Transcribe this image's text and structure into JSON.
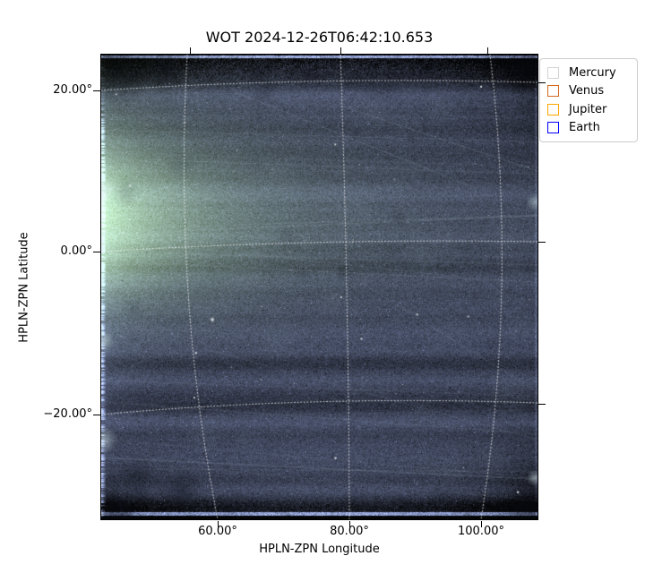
{
  "figure": {
    "title": "WOT 2024-12-26T06:42:10.653",
    "background_color": "#ffffff"
  },
  "axes": {
    "xlabel": "HPLN-ZPN Longitude",
    "ylabel": "HPLN-ZPN Latitude",
    "x_tick_labels": [
      "60.00°",
      "80.00°",
      "100.00°"
    ],
    "y_tick_labels": [
      "20.00°",
      "0.00°",
      "−20.00°"
    ]
  },
  "legend": {
    "items": [
      {
        "label": "Mercury",
        "color": "#d3d3d3"
      },
      {
        "label": "Venus",
        "color": "#d2691e"
      },
      {
        "label": "Jupiter",
        "color": "#ffa500"
      },
      {
        "label": "Earth",
        "color": "#0000ff"
      }
    ]
  },
  "chart_data": {
    "type": "heatmap",
    "title": "WOT 2024-12-26T06:42:10.653",
    "xlabel": "HPLN-ZPN Longitude",
    "ylabel": "HPLN-ZPN Latitude",
    "x_tick_values_deg": [
      60,
      80,
      100
    ],
    "y_tick_values_deg": [
      20,
      0,
      -20
    ],
    "xlim_deg": [
      42.5,
      108.5
    ],
    "ylim_deg": [
      -33,
      24.5
    ],
    "grid": "white dotted curved WCS graticule; longitude lines at 60/80/100 deg, latitude lines at 20/0/-20 deg",
    "legend_position": "outside upper right",
    "legend_items": [
      {
        "name": "Mercury",
        "marker": "unfilled square",
        "color": "#d3d3d3"
      },
      {
        "name": "Venus",
        "marker": "unfilled square",
        "color": "#d2691e"
      },
      {
        "name": "Jupiter",
        "marker": "unfilled square",
        "color": "#ffa500"
      },
      {
        "name": "Earth",
        "marker": "unfilled square",
        "color": "#0000ff"
      }
    ],
    "image_description": "Noisy dark slate-blue wide-field heliospheric imager frame; bright pale-teal zodiacal-light glow at the left around +4 deg latitude; ragged bright left edge; thin bright lines along top and bottom edges with dark bands and dark corners; many faint diagonal satellite/debris streaks and star speckles; no planet markers fall inside the field of view",
    "palette": {
      "base": "#3d4459",
      "glow": "#9cbcbd",
      "dark_edge": "#12141d",
      "bright_edge": "#eef3f2",
      "grid_dots": "#ffffff"
    }
  }
}
